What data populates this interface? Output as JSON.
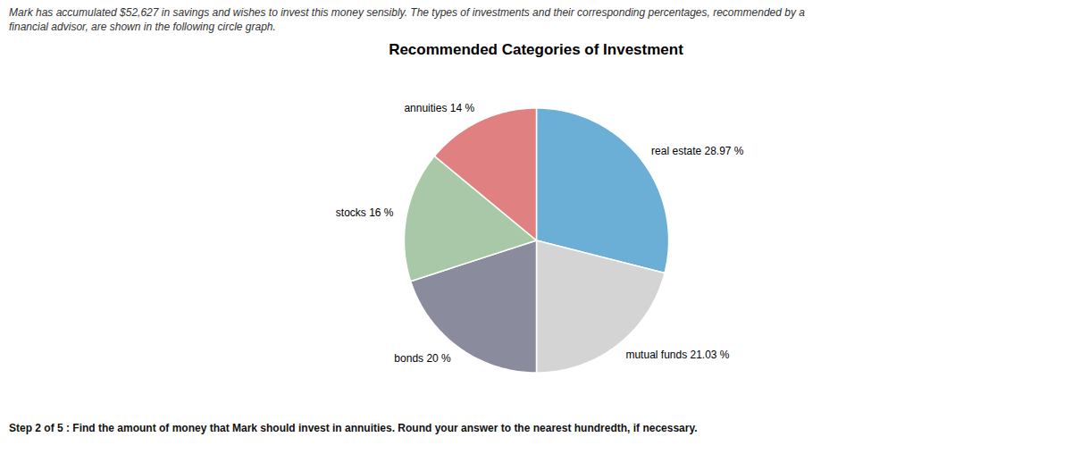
{
  "chart_data": {
    "type": "pie",
    "title": "Recommended Categories of Investment",
    "annotations": [
      "Mark has accumulated $52,627 in savings and wishes to invest this money sensibly. The types of investments and their corresponding percentages, recommended by a",
      "financial advisor, are shown in the following circle graph.",
      "Step 2 of 5 :  Find the amount of money that Mark should invest in annuities. Round your answer to the nearest hundredth, if necessary."
    ],
    "categories": [
      "real estate",
      "mutual funds",
      "bonds",
      "stocks",
      "annuities"
    ],
    "values": [
      28.97,
      21.03,
      20.0,
      16.0,
      14.0
    ],
    "value_labels": [
      "real estate 28.97 %",
      "mutual funds 21.03 %",
      "bonds 20 %",
      "stocks 16 %",
      "annuities 14 %"
    ],
    "colors": [
      "#6baed6",
      "#d4d4d4",
      "#8b8b9e",
      "#a8c8a8",
      "#e08080"
    ],
    "data_labels": true,
    "tick_labels": false,
    "legend": false
  }
}
